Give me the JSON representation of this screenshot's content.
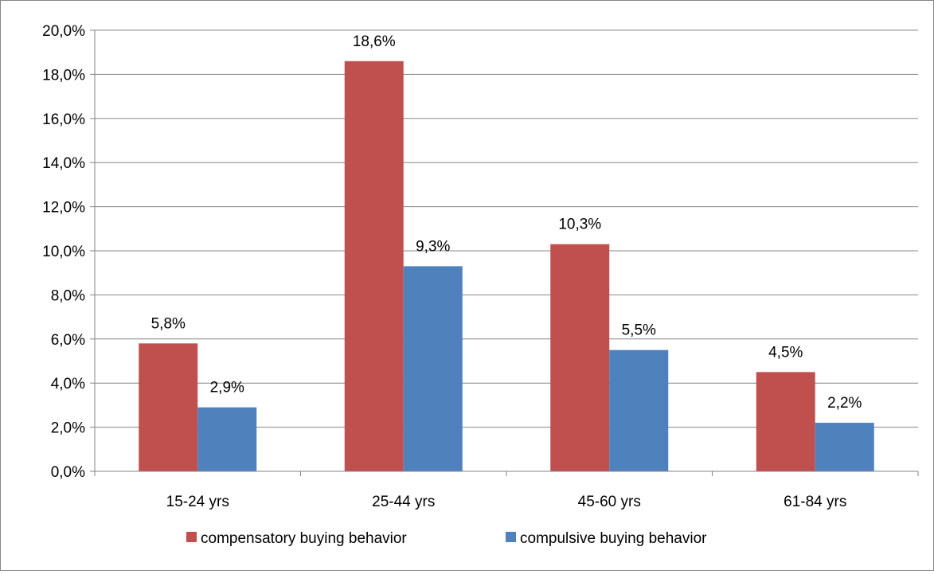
{
  "chart_data": {
    "type": "bar",
    "title": "",
    "xlabel": "",
    "ylabel": "",
    "ylim": [
      0,
      20
    ],
    "y_tick_step": 2,
    "y_tick_labels": [
      "0,0%",
      "2,0%",
      "4,0%",
      "6,0%",
      "8,0%",
      "10,0%",
      "12,0%",
      "14,0%",
      "16,0%",
      "18,0%",
      "20,0%"
    ],
    "grid": true,
    "legend_position": "bottom",
    "categories": [
      "15-24 yrs",
      "25-44 yrs",
      "45-60 yrs",
      "61-84 yrs"
    ],
    "series": [
      {
        "name": "compensatory buying behavior",
        "color": "#c0504d",
        "values": [
          5.8,
          18.6,
          10.3,
          4.5
        ],
        "data_labels": [
          "5,8%",
          "18,6%",
          "10,3%",
          "4,5%"
        ]
      },
      {
        "name": "compulsive buying behavior",
        "color": "#4f81bd",
        "values": [
          2.9,
          9.3,
          5.5,
          2.2
        ],
        "data_labels": [
          "2,9%",
          "9,3%",
          "5,5%",
          "2,2%"
        ]
      }
    ]
  }
}
